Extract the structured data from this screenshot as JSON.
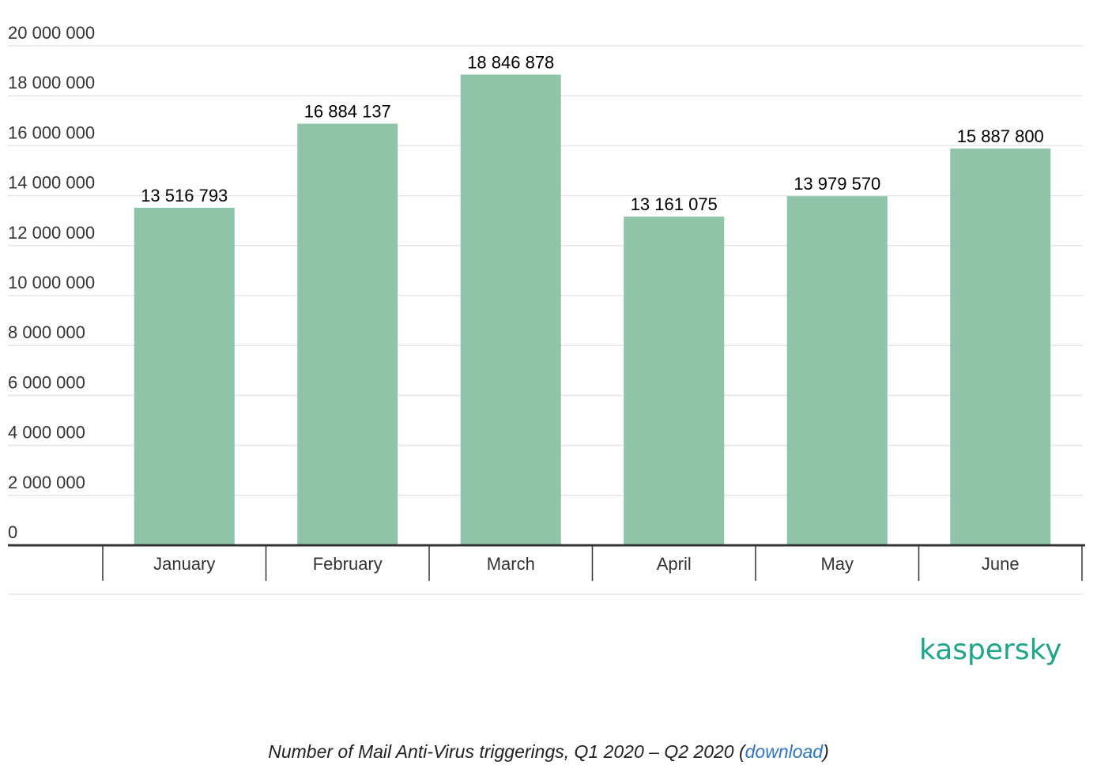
{
  "chart_data": {
    "type": "bar",
    "title": "Number of Mail Anti-Virus triggerings, Q1 2020 – Q2 2020",
    "xlabel": "",
    "ylabel": "",
    "categories": [
      "January",
      "February",
      "March",
      "April",
      "May",
      "June"
    ],
    "values": [
      13516793,
      16884137,
      18846878,
      13161075,
      13979570,
      15887800
    ],
    "value_labels": [
      "13 516 793",
      "16 884 137",
      "18 846 878",
      "13 161 075",
      "13 979 570",
      "15 887 800"
    ],
    "ylim": [
      0,
      20000000
    ],
    "yticks": [
      0,
      2000000,
      4000000,
      6000000,
      8000000,
      10000000,
      12000000,
      14000000,
      16000000,
      18000000,
      20000000
    ],
    "ytick_labels": [
      "0",
      "2 000 000",
      "4 000 000",
      "6 000 000",
      "8 000 000",
      "10 000 000",
      "12 000 000",
      "14 000 000",
      "16 000 000",
      "18 000 000",
      "20 000 000"
    ],
    "grid": true,
    "bar_color": "#8fc4a8",
    "grid_color": "#e6e6e6",
    "axis_color": "#333333"
  },
  "brand": {
    "name": "kaspersky",
    "color": "#1fa58a"
  },
  "caption": {
    "text": "Number of Mail Anti-Virus triggerings, Q1 2020 – Q2 2020 (",
    "link_label": "download",
    "close": ")",
    "link_color": "#2f75c9"
  }
}
